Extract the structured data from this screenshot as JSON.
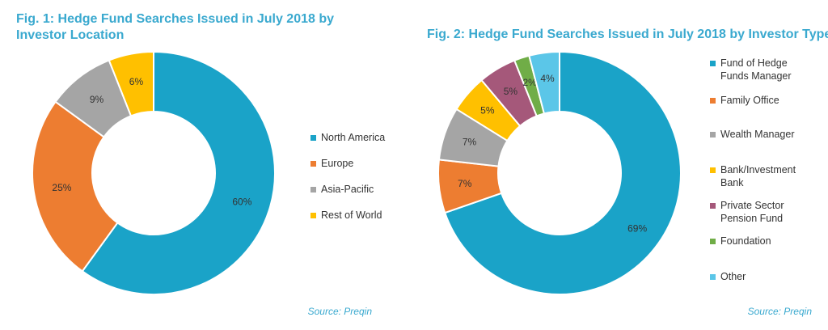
{
  "chart_data": [
    {
      "type": "pie",
      "title": "Fig. 1: Hedge Fund Searches Issued in July 2018 by Investor Location",
      "categories": [
        "North America",
        "Europe",
        "Asia-Pacific",
        "Rest of World"
      ],
      "values": [
        60,
        25,
        9,
        6
      ],
      "labels": [
        "60%",
        "25%",
        "9%",
        "6%"
      ],
      "colors": [
        "#1aa3c8",
        "#ed7d31",
        "#a5a5a5",
        "#ffc000"
      ],
      "legend": "right",
      "source": "Source: Preqin"
    },
    {
      "type": "pie",
      "title": "Fig. 2: Hedge Fund Searches Issued in July 2018 by Investor Type",
      "categories": [
        "Fund of Hedge Funds Manager",
        "Family Office",
        "Wealth Manager",
        "Bank/Investment Bank",
        "Private Sector Pension Fund",
        "Foundation",
        "Other"
      ],
      "values": [
        69,
        7,
        7,
        5,
        5,
        2,
        4
      ],
      "labels": [
        "69%",
        "7%",
        "7%",
        "5%",
        "5%",
        "2%",
        "4%"
      ],
      "colors": [
        "#1aa3c8",
        "#ed7d31",
        "#a5a5a5",
        "#ffc000",
        "#a5587a",
        "#70ad47",
        "#5bc6e8"
      ],
      "legend": "right",
      "source": "Source: Preqin"
    }
  ]
}
